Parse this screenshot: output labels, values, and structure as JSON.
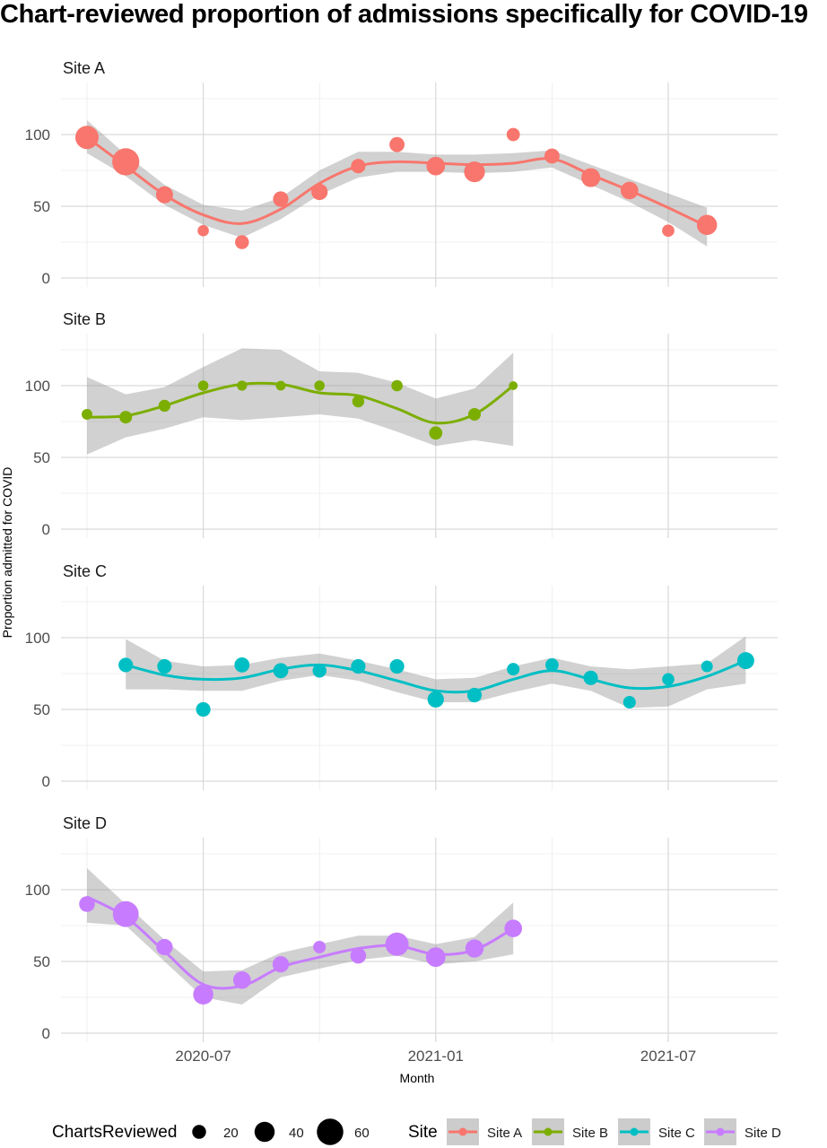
{
  "chart_data": {
    "type": "scatter",
    "title": "Chart-reviewed proportion of admissions specifically for COVID-19",
    "xlabel": "Month",
    "ylabel": "Proportion admitted for COVID",
    "ylim": [
      0,
      100
    ],
    "yticks": [
      0,
      50,
      100
    ],
    "xticks": [
      "2020-07",
      "2021-01",
      "2021-07"
    ],
    "x_range": [
      "2020-04",
      "2021-09"
    ],
    "grid": true,
    "facets": [
      {
        "name": "Site A",
        "color": "#F8766D",
        "points": [
          {
            "x": "2020-04",
            "y": 98,
            "size": 50
          },
          {
            "x": "2020-05",
            "y": 81,
            "size": 62
          },
          {
            "x": "2020-06",
            "y": 58,
            "size": 30
          },
          {
            "x": "2020-07",
            "y": 33,
            "size": 12
          },
          {
            "x": "2020-08",
            "y": 25,
            "size": 20
          },
          {
            "x": "2020-09",
            "y": 55,
            "size": 25
          },
          {
            "x": "2020-10",
            "y": 60,
            "size": 28
          },
          {
            "x": "2020-11",
            "y": 78,
            "size": 22
          },
          {
            "x": "2020-12",
            "y": 93,
            "size": 24
          },
          {
            "x": "2021-01",
            "y": 78,
            "size": 35
          },
          {
            "x": "2021-02",
            "y": 74,
            "size": 42
          },
          {
            "x": "2021-03",
            "y": 100,
            "size": 18
          },
          {
            "x": "2021-04",
            "y": 85,
            "size": 24
          },
          {
            "x": "2021-05",
            "y": 70,
            "size": 36
          },
          {
            "x": "2021-06",
            "y": 61,
            "size": 32
          },
          {
            "x": "2021-07",
            "y": 33,
            "size": 15
          },
          {
            "x": "2021-08",
            "y": 37,
            "size": 40
          }
        ],
        "smooth": [
          {
            "x": "2020-04",
            "y": 98,
            "lo": 87,
            "hi": 110
          },
          {
            "x": "2020-05",
            "y": 78,
            "lo": 71,
            "hi": 86
          },
          {
            "x": "2020-06",
            "y": 58,
            "lo": 51,
            "hi": 65
          },
          {
            "x": "2020-07",
            "y": 44,
            "lo": 37,
            "hi": 51
          },
          {
            "x": "2020-08",
            "y": 38,
            "lo": 28,
            "hi": 47
          },
          {
            "x": "2020-09",
            "y": 48,
            "lo": 41,
            "hi": 56
          },
          {
            "x": "2020-10",
            "y": 66,
            "lo": 58,
            "hi": 75
          },
          {
            "x": "2020-11",
            "y": 78,
            "lo": 70,
            "hi": 88
          },
          {
            "x": "2020-12",
            "y": 81,
            "lo": 74,
            "hi": 88
          },
          {
            "x": "2021-01",
            "y": 80,
            "lo": 74,
            "hi": 86
          },
          {
            "x": "2021-02",
            "y": 79,
            "lo": 73,
            "hi": 86
          },
          {
            "x": "2021-03",
            "y": 80,
            "lo": 74,
            "hi": 87
          },
          {
            "x": "2021-04",
            "y": 83,
            "lo": 77,
            "hi": 89
          },
          {
            "x": "2021-05",
            "y": 72,
            "lo": 65,
            "hi": 79
          },
          {
            "x": "2021-06",
            "y": 61,
            "lo": 53,
            "hi": 69
          },
          {
            "x": "2021-07",
            "y": 49,
            "lo": 39,
            "hi": 59
          },
          {
            "x": "2021-08",
            "y": 36,
            "lo": 22,
            "hi": 49
          }
        ]
      },
      {
        "name": "Site B",
        "color": "#7CAE00",
        "points": [
          {
            "x": "2020-04",
            "y": 80,
            "size": 10
          },
          {
            "x": "2020-05",
            "y": 78,
            "size": 16
          },
          {
            "x": "2020-06",
            "y": 86,
            "size": 14
          },
          {
            "x": "2020-07",
            "y": 100,
            "size": 9
          },
          {
            "x": "2020-08",
            "y": 100,
            "size": 8
          },
          {
            "x": "2020-09",
            "y": 100,
            "size": 7
          },
          {
            "x": "2020-10",
            "y": 100,
            "size": 9
          },
          {
            "x": "2020-11",
            "y": 89,
            "size": 14
          },
          {
            "x": "2020-12",
            "y": 100,
            "size": 12
          },
          {
            "x": "2021-01",
            "y": 67,
            "size": 18
          },
          {
            "x": "2021-02",
            "y": 80,
            "size": 16
          },
          {
            "x": "2021-03",
            "y": 100,
            "size": 4
          }
        ],
        "smooth": [
          {
            "x": "2020-04",
            "y": 78,
            "lo": 52,
            "hi": 106
          },
          {
            "x": "2020-05",
            "y": 79,
            "lo": 64,
            "hi": 94
          },
          {
            "x": "2020-06",
            "y": 86,
            "lo": 70,
            "hi": 99
          },
          {
            "x": "2020-07",
            "y": 95,
            "lo": 78,
            "hi": 113
          },
          {
            "x": "2020-08",
            "y": 101,
            "lo": 76,
            "hi": 126
          },
          {
            "x": "2020-09",
            "y": 101,
            "lo": 78,
            "hi": 125
          },
          {
            "x": "2020-10",
            "y": 95,
            "lo": 80,
            "hi": 110
          },
          {
            "x": "2020-11",
            "y": 93,
            "lo": 77,
            "hi": 109
          },
          {
            "x": "2020-12",
            "y": 84,
            "lo": 68,
            "hi": 102
          },
          {
            "x": "2021-01",
            "y": 74,
            "lo": 58,
            "hi": 91
          },
          {
            "x": "2021-02",
            "y": 80,
            "lo": 62,
            "hi": 98
          },
          {
            "x": "2021-03",
            "y": 100,
            "lo": 58,
            "hi": 123
          }
        ]
      },
      {
        "name": "Site C",
        "color": "#00BFC4",
        "points": [
          {
            "x": "2020-05",
            "y": 81,
            "size": 22
          },
          {
            "x": "2020-06",
            "y": 80,
            "size": 22
          },
          {
            "x": "2020-07",
            "y": 50,
            "size": 22
          },
          {
            "x": "2020-08",
            "y": 81,
            "size": 24
          },
          {
            "x": "2020-09",
            "y": 77,
            "size": 24
          },
          {
            "x": "2020-10",
            "y": 77,
            "size": 20
          },
          {
            "x": "2020-11",
            "y": 80,
            "size": 22
          },
          {
            "x": "2020-12",
            "y": 80,
            "size": 22
          },
          {
            "x": "2021-01",
            "y": 57,
            "size": 28
          },
          {
            "x": "2021-02",
            "y": 60,
            "size": 22
          },
          {
            "x": "2021-03",
            "y": 78,
            "size": 16
          },
          {
            "x": "2021-04",
            "y": 81,
            "size": 18
          },
          {
            "x": "2021-05",
            "y": 72,
            "size": 22
          },
          {
            "x": "2021-06",
            "y": 55,
            "size": 16
          },
          {
            "x": "2021-07",
            "y": 71,
            "size": 15
          },
          {
            "x": "2021-08",
            "y": 80,
            "size": 13
          },
          {
            "x": "2021-09",
            "y": 84,
            "size": 30
          }
        ],
        "smooth": [
          {
            "x": "2020-05",
            "y": 81,
            "lo": 64,
            "hi": 99
          },
          {
            "x": "2020-06",
            "y": 74,
            "lo": 64,
            "hi": 84
          },
          {
            "x": "2020-07",
            "y": 71,
            "lo": 63,
            "hi": 80
          },
          {
            "x": "2020-08",
            "y": 72,
            "lo": 63,
            "hi": 81
          },
          {
            "x": "2020-09",
            "y": 78,
            "lo": 70,
            "hi": 86
          },
          {
            "x": "2020-10",
            "y": 81,
            "lo": 74,
            "hi": 89
          },
          {
            "x": "2020-11",
            "y": 77,
            "lo": 70,
            "hi": 84
          },
          {
            "x": "2020-12",
            "y": 70,
            "lo": 62,
            "hi": 78
          },
          {
            "x": "2021-01",
            "y": 63,
            "lo": 55,
            "hi": 71
          },
          {
            "x": "2021-02",
            "y": 63,
            "lo": 55,
            "hi": 72
          },
          {
            "x": "2021-03",
            "y": 71,
            "lo": 62,
            "hi": 80
          },
          {
            "x": "2021-04",
            "y": 77,
            "lo": 68,
            "hi": 86
          },
          {
            "x": "2021-05",
            "y": 71,
            "lo": 63,
            "hi": 80
          },
          {
            "x": "2021-06",
            "y": 65,
            "lo": 51,
            "hi": 78
          },
          {
            "x": "2021-07",
            "y": 66,
            "lo": 52,
            "hi": 80
          },
          {
            "x": "2021-08",
            "y": 73,
            "lo": 64,
            "hi": 82
          },
          {
            "x": "2021-09",
            "y": 84,
            "lo": 68,
            "hi": 101
          }
        ]
      },
      {
        "name": "Site D",
        "color": "#C77CFF",
        "points": [
          {
            "x": "2020-04",
            "y": 90,
            "size": 26
          },
          {
            "x": "2020-05",
            "y": 83,
            "size": 58
          },
          {
            "x": "2020-06",
            "y": 60,
            "size": 28
          },
          {
            "x": "2020-07",
            "y": 27,
            "size": 40
          },
          {
            "x": "2020-08",
            "y": 37,
            "size": 32
          },
          {
            "x": "2020-09",
            "y": 48,
            "size": 28
          },
          {
            "x": "2020-10",
            "y": 60,
            "size": 16
          },
          {
            "x": "2020-11",
            "y": 54,
            "size": 26
          },
          {
            "x": "2020-12",
            "y": 62,
            "size": 50
          },
          {
            "x": "2021-01",
            "y": 53,
            "size": 38
          },
          {
            "x": "2021-02",
            "y": 59,
            "size": 34
          },
          {
            "x": "2021-03",
            "y": 73,
            "size": 32
          }
        ],
        "smooth": [
          {
            "x": "2020-04",
            "y": 95,
            "lo": 77,
            "hi": 115
          },
          {
            "x": "2020-05",
            "y": 81,
            "lo": 75,
            "hi": 90
          },
          {
            "x": "2020-06",
            "y": 57,
            "lo": 50,
            "hi": 65
          },
          {
            "x": "2020-07",
            "y": 34,
            "lo": 25,
            "hi": 43
          },
          {
            "x": "2020-08",
            "y": 33,
            "lo": 20,
            "hi": 44
          },
          {
            "x": "2020-09",
            "y": 46,
            "lo": 39,
            "hi": 56
          },
          {
            "x": "2020-10",
            "y": 53,
            "lo": 45,
            "hi": 62
          },
          {
            "x": "2020-11",
            "y": 59,
            "lo": 51,
            "hi": 68
          },
          {
            "x": "2020-12",
            "y": 61,
            "lo": 54,
            "hi": 68
          },
          {
            "x": "2021-01",
            "y": 55,
            "lo": 48,
            "hi": 62
          },
          {
            "x": "2021-02",
            "y": 58,
            "lo": 50,
            "hi": 67
          },
          {
            "x": "2021-03",
            "y": 73,
            "lo": 55,
            "hi": 91
          }
        ]
      }
    ],
    "legend": {
      "position": "bottom",
      "size_title": "ChartsReviewed",
      "size_entries": [
        {
          "label": "20",
          "value": 20
        },
        {
          "label": "40",
          "value": 40
        },
        {
          "label": "60",
          "value": 60
        }
      ],
      "color_title": "Site",
      "color_entries": [
        {
          "label": "Site A",
          "color": "#F8766D"
        },
        {
          "label": "Site B",
          "color": "#7CAE00"
        },
        {
          "label": "Site C",
          "color": "#00BFC4"
        },
        {
          "label": "Site D",
          "color": "#C77CFF"
        }
      ]
    }
  }
}
